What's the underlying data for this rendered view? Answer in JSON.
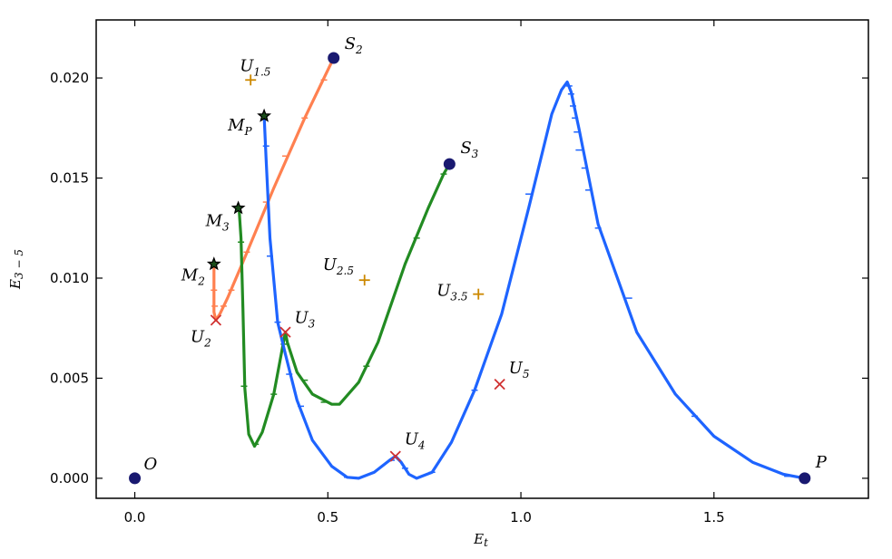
{
  "chart_data": {
    "type": "line",
    "title": "",
    "xlabel": "E",
    "xlabel_sub": "t",
    "ylabel": "E",
    "ylabel_sub": "3 − 5",
    "xlim": [
      -0.1,
      1.9
    ],
    "ylim": [
      -0.001,
      0.0229
    ],
    "xticks": [
      0.0,
      0.5,
      1.0,
      1.5
    ],
    "xtick_labels": [
      "0.0",
      "0.5",
      "1.0",
      "1.5"
    ],
    "yticks": [
      0.0,
      0.005,
      0.01,
      0.015,
      0.02
    ],
    "ytick_labels": [
      "0.000",
      "0.005",
      "0.010",
      "0.015",
      "0.020"
    ],
    "grid": false,
    "legend": false,
    "series": [
      {
        "color": "#ff8050",
        "style": "line",
        "points": [
          [
            0.515,
            0.021
          ],
          [
            0.44,
            0.018
          ],
          [
            0.36,
            0.0145
          ],
          [
            0.28,
            0.0108
          ],
          [
            0.24,
            0.009
          ],
          [
            0.22,
            0.0082
          ],
          [
            0.21,
            0.0079
          ],
          [
            0.205,
            0.0083
          ],
          [
            0.205,
            0.0107
          ]
        ],
        "ticks": [
          [
            0.49,
            0.0199
          ],
          [
            0.44,
            0.018
          ],
          [
            0.39,
            0.0161
          ],
          [
            0.34,
            0.0138
          ],
          [
            0.29,
            0.0113
          ],
          [
            0.25,
            0.0094
          ],
          [
            0.23,
            0.0086
          ],
          [
            0.207,
            0.0086
          ],
          [
            0.205,
            0.0094
          ]
        ]
      },
      {
        "color": "#228b22",
        "style": "line",
        "points": [
          [
            0.27,
            0.0135
          ],
          [
            0.275,
            0.012
          ],
          [
            0.28,
            0.0085
          ],
          [
            0.285,
            0.0045
          ],
          [
            0.295,
            0.0022
          ],
          [
            0.31,
            0.0016
          ],
          [
            0.33,
            0.0023
          ],
          [
            0.36,
            0.0042
          ],
          [
            0.385,
            0.0068
          ],
          [
            0.39,
            0.0073
          ],
          [
            0.395,
            0.0068
          ],
          [
            0.42,
            0.0053
          ],
          [
            0.46,
            0.0042
          ],
          [
            0.51,
            0.0037
          ],
          [
            0.53,
            0.0037
          ],
          [
            0.58,
            0.0048
          ],
          [
            0.63,
            0.0068
          ],
          [
            0.7,
            0.0107
          ],
          [
            0.76,
            0.0135
          ],
          [
            0.8,
            0.0152
          ],
          [
            0.815,
            0.0157
          ]
        ],
        "ticks": [
          [
            0.275,
            0.0118
          ],
          [
            0.283,
            0.0046
          ],
          [
            0.313,
            0.0017
          ],
          [
            0.36,
            0.0042
          ],
          [
            0.386,
            0.0067
          ],
          [
            0.44,
            0.0049
          ],
          [
            0.49,
            0.0038
          ],
          [
            0.6,
            0.0056
          ],
          [
            0.73,
            0.012
          ],
          [
            0.8,
            0.0152
          ]
        ]
      },
      {
        "color": "#1e64ff",
        "style": "line",
        "points": [
          [
            0.335,
            0.0181
          ],
          [
            0.34,
            0.016
          ],
          [
            0.35,
            0.012
          ],
          [
            0.37,
            0.0078
          ],
          [
            0.39,
            0.0062
          ],
          [
            0.42,
            0.0039
          ],
          [
            0.46,
            0.0019
          ],
          [
            0.51,
            0.0006
          ],
          [
            0.55,
            5e-05
          ],
          [
            0.58,
            0.0
          ],
          [
            0.62,
            0.0003
          ],
          [
            0.66,
            0.0009
          ],
          [
            0.675,
            0.0011
          ],
          [
            0.69,
            0.0008
          ],
          [
            0.71,
            0.0002
          ],
          [
            0.73,
            0.0
          ],
          [
            0.77,
            0.0003
          ],
          [
            0.82,
            0.0018
          ],
          [
            0.88,
            0.0044
          ],
          [
            0.95,
            0.0082
          ],
          [
            1.02,
            0.0135
          ],
          [
            1.08,
            0.0182
          ],
          [
            1.105,
            0.0194
          ],
          [
            1.12,
            0.0198
          ],
          [
            1.13,
            0.0193
          ],
          [
            1.15,
            0.0175
          ],
          [
            1.2,
            0.0127
          ],
          [
            1.3,
            0.0073
          ],
          [
            1.4,
            0.0042
          ],
          [
            1.5,
            0.0021
          ],
          [
            1.6,
            0.0008
          ],
          [
            1.68,
            0.0002
          ],
          [
            1.735,
            0.0
          ]
        ],
        "ticks": [
          [
            0.34,
            0.0166
          ],
          [
            0.35,
            0.0111
          ],
          [
            0.37,
            0.0078
          ],
          [
            0.4,
            0.0052
          ],
          [
            0.43,
            0.0036
          ],
          [
            0.55,
            5e-05
          ],
          [
            0.665,
            0.0009
          ],
          [
            0.7,
            0.0005
          ],
          [
            0.77,
            0.0003
          ],
          [
            0.88,
            0.0044
          ],
          [
            1.02,
            0.0142
          ],
          [
            1.125,
            0.0196
          ],
          [
            1.13,
            0.0192
          ],
          [
            1.135,
            0.0186
          ],
          [
            1.14,
            0.018
          ],
          [
            1.145,
            0.0173
          ],
          [
            1.15,
            0.0164
          ],
          [
            1.165,
            0.0155
          ],
          [
            1.175,
            0.0144
          ],
          [
            1.2,
            0.0125
          ],
          [
            1.28,
            0.009
          ],
          [
            1.45,
            0.0031
          ],
          [
            1.69,
            0.0001
          ]
        ]
      }
    ],
    "markers": [
      {
        "label": "O",
        "sub": "",
        "x": 0.0,
        "y": 0.0,
        "marker": "circle",
        "color": "#191970"
      },
      {
        "label": "S",
        "sub": "2",
        "x": 0.515,
        "y": 0.021,
        "marker": "circle",
        "color": "#191970"
      },
      {
        "label": "S",
        "sub": "3",
        "x": 0.815,
        "y": 0.0157,
        "marker": "circle",
        "color": "#191970"
      },
      {
        "label": "P",
        "sub": "",
        "x": 1.735,
        "y": 0.0,
        "marker": "circle",
        "color": "#191970"
      },
      {
        "label": "M",
        "sub": "P",
        "x": 0.335,
        "y": 0.0181,
        "marker": "star",
        "color": "#000000"
      },
      {
        "label": "M",
        "sub": "3",
        "x": 0.268,
        "y": 0.0135,
        "marker": "star",
        "color": "#000000"
      },
      {
        "label": "M",
        "sub": "2",
        "x": 0.205,
        "y": 0.0107,
        "marker": "star",
        "color": "#000000"
      },
      {
        "label": "U",
        "sub": "1.5",
        "x": 0.3,
        "y": 0.0199,
        "marker": "plus",
        "color": "#cc8800"
      },
      {
        "label": "U",
        "sub": "2.5",
        "x": 0.595,
        "y": 0.0099,
        "marker": "plus",
        "color": "#cc8800"
      },
      {
        "label": "U",
        "sub": "3.5",
        "x": 0.89,
        "y": 0.0092,
        "marker": "plus",
        "color": "#cc8800"
      },
      {
        "label": "U",
        "sub": "2",
        "x": 0.21,
        "y": 0.0079,
        "marker": "x",
        "color": "#d03030"
      },
      {
        "label": "U",
        "sub": "3",
        "x": 0.39,
        "y": 0.0073,
        "marker": "x",
        "color": "#d03030"
      },
      {
        "label": "U",
        "sub": "4",
        "x": 0.675,
        "y": 0.0011,
        "marker": "x",
        "color": "#d03030"
      },
      {
        "label": "U",
        "sub": "5",
        "x": 0.945,
        "y": 0.0047,
        "marker": "x",
        "color": "#d03030"
      }
    ]
  }
}
